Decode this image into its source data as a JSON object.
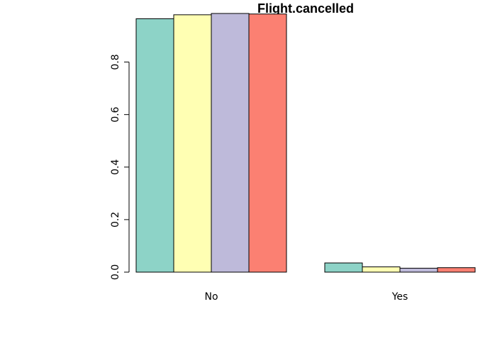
{
  "chart_data": {
    "type": "bar",
    "title": "Flight.cancelled",
    "xlabel": "",
    "ylabel": "",
    "categories": [
      "No",
      "Yes"
    ],
    "series": [
      {
        "values": [
          0.965,
          0.035
        ],
        "color": "#8DD3C7"
      },
      {
        "values": [
          0.98,
          0.02
        ],
        "color": "#FFFFB3"
      },
      {
        "values": [
          0.985,
          0.015
        ],
        "color": "#BEBADA"
      },
      {
        "values": [
          0.983,
          0.017
        ],
        "color": "#FB8072"
      }
    ],
    "yticks": [
      "0.0",
      "0.2",
      "0.4",
      "0.6",
      "0.8"
    ],
    "ytick_values": [
      0,
      0.2,
      0.4,
      0.6,
      0.8
    ],
    "ylim": [
      0,
      0.985
    ],
    "grid": false,
    "legend": "none"
  }
}
